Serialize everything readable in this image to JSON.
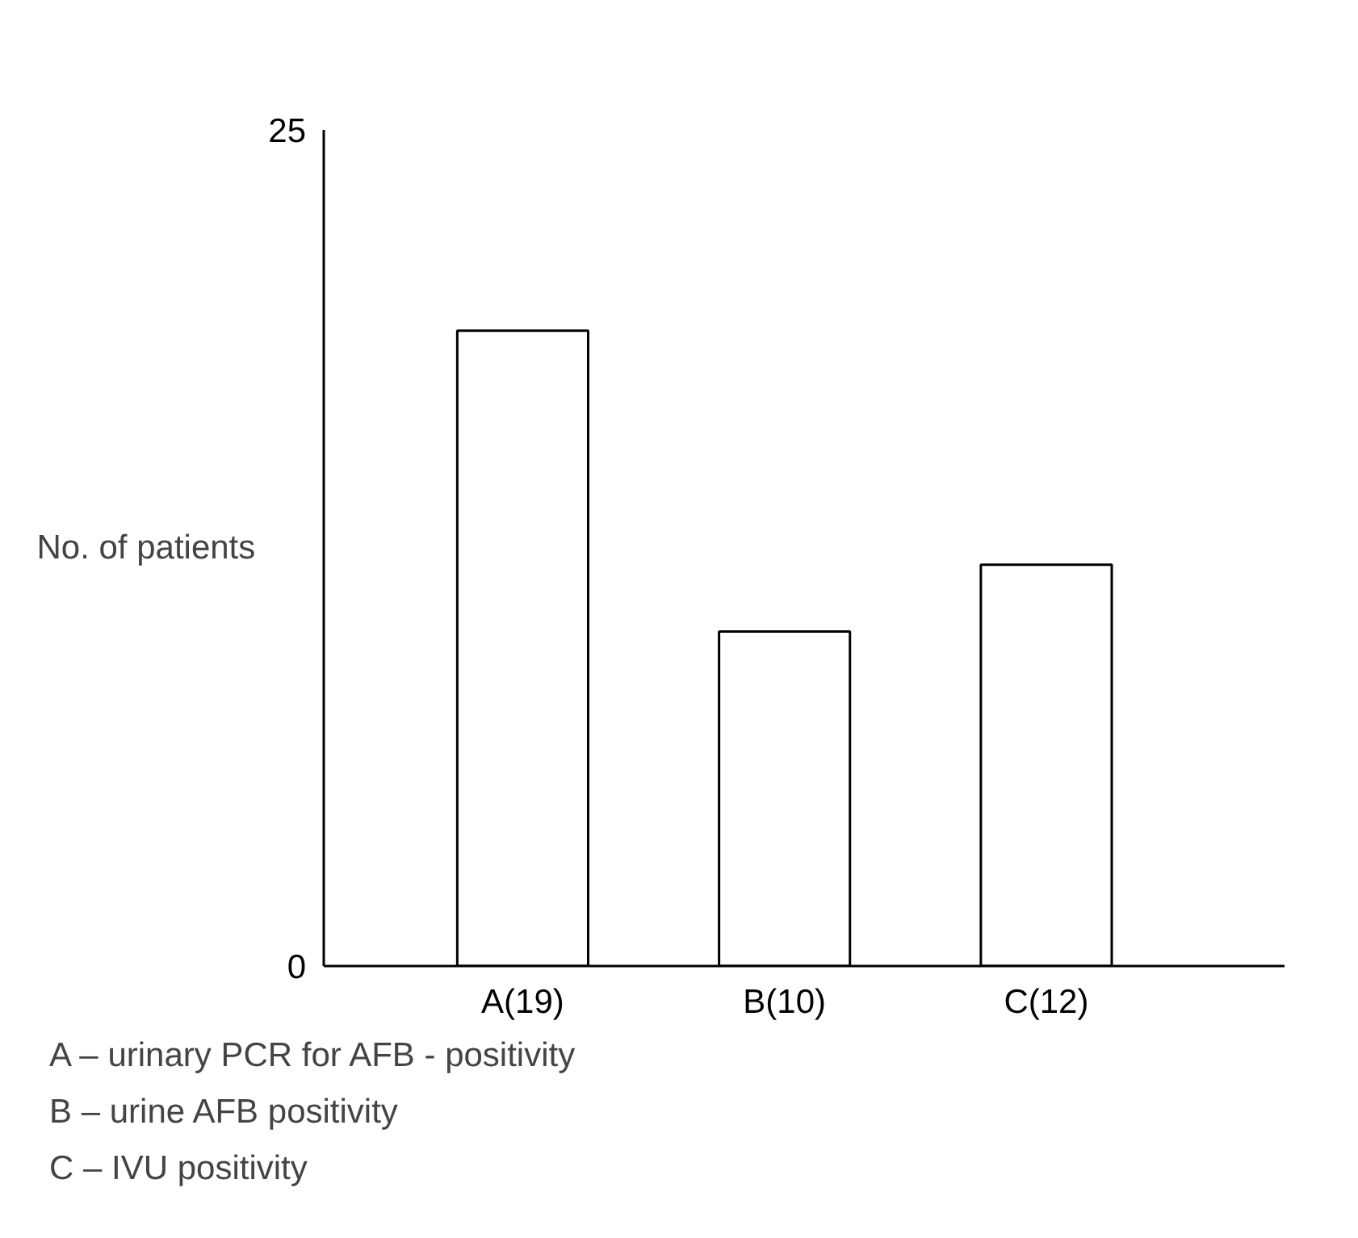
{
  "chart_data": {
    "type": "bar",
    "ylabel": "No. of patients",
    "categories": [
      "A(19)",
      "B(10)",
      "C(12)"
    ],
    "values": [
      19,
      10,
      12
    ],
    "color": "#ffffff",
    "ylim": [
      0,
      25
    ],
    "yticks": [
      0,
      25
    ],
    "grid": false,
    "annotations": [
      "A – urinary PCR for AFB - positivity",
      "B – urine AFB positivity",
      "C – IVU positivity"
    ]
  }
}
